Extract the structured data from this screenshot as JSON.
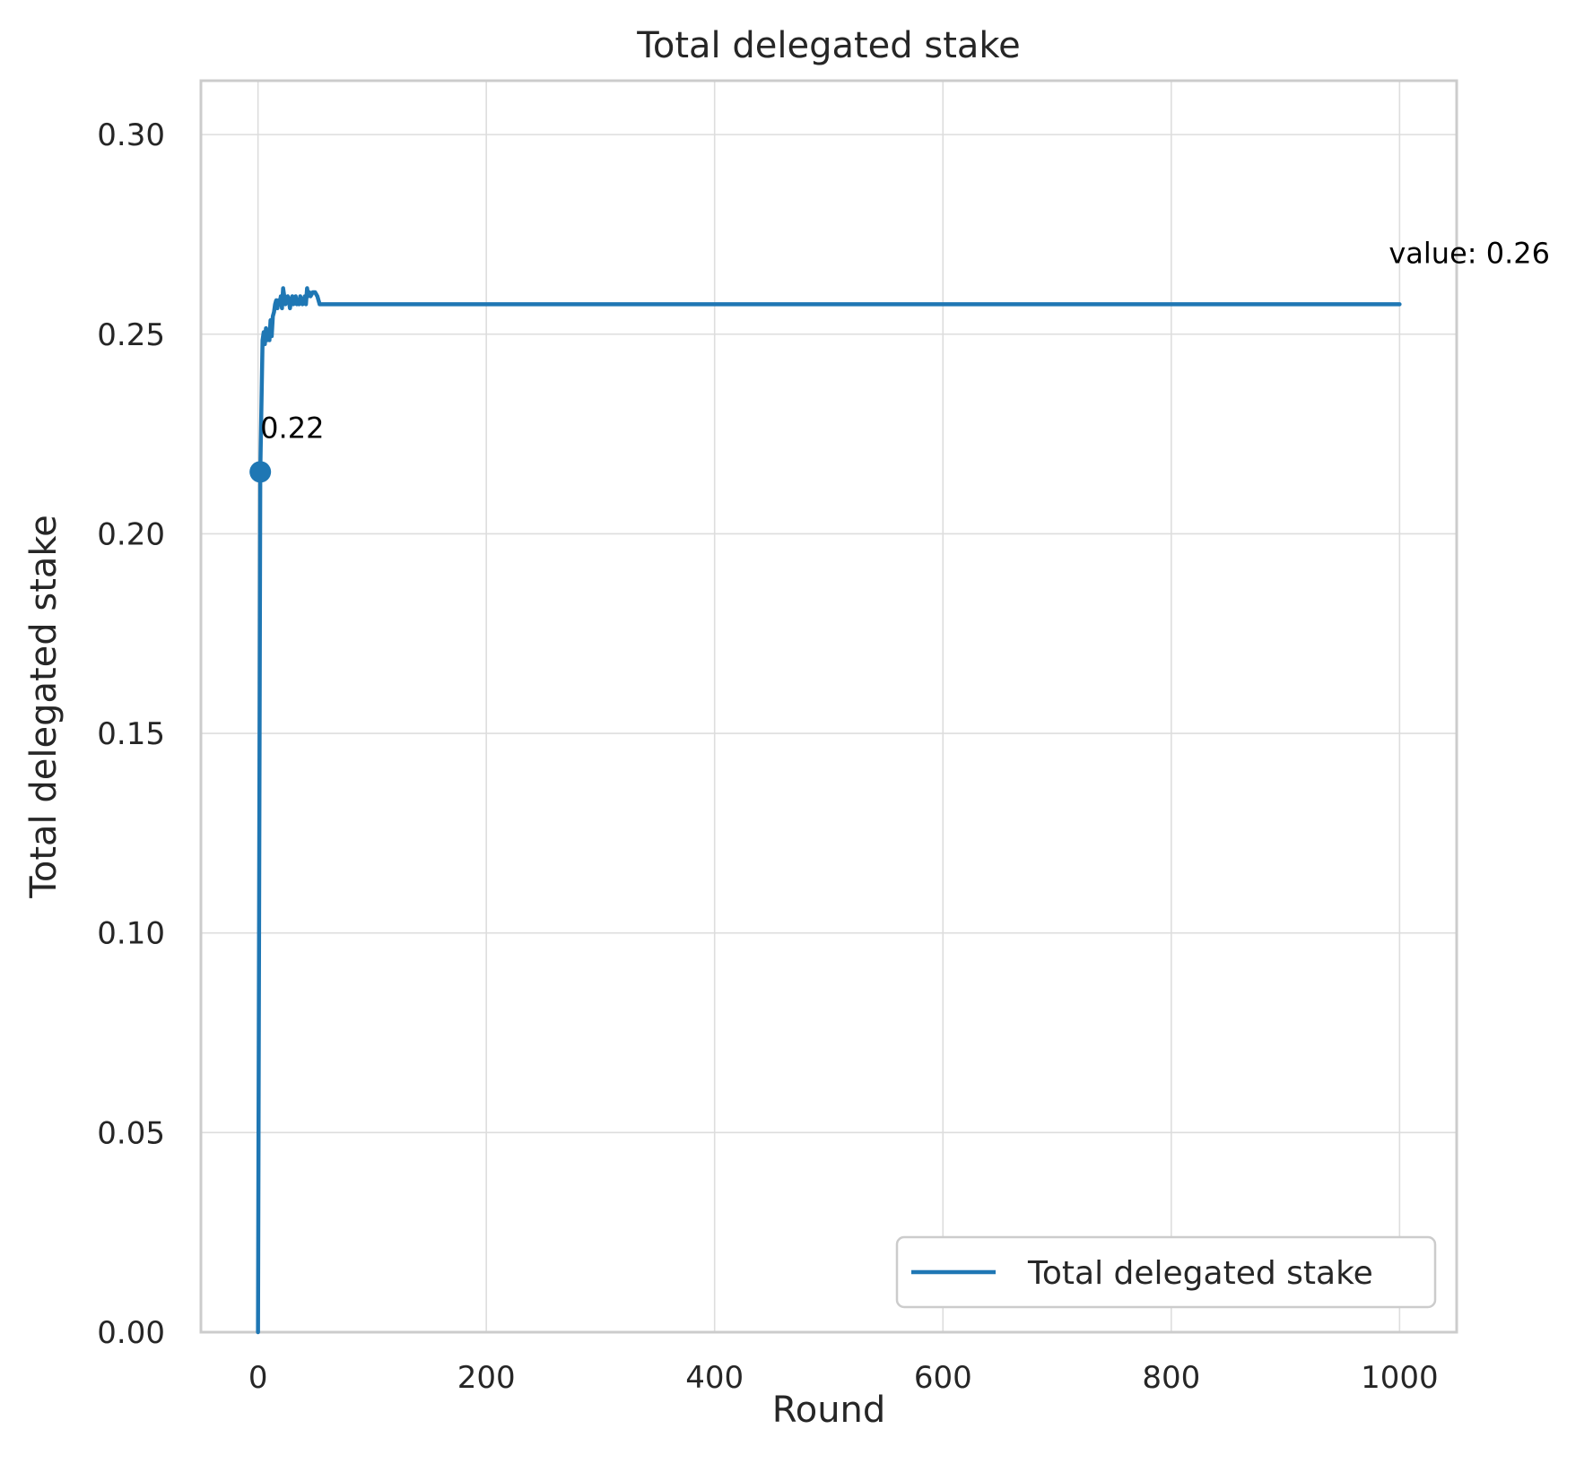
{
  "chart_data": {
    "type": "line",
    "title": "Total delegated stake",
    "xlabel": "Round",
    "ylabel": "Total delegated stake",
    "xlim": [
      -50,
      1050
    ],
    "ylim": [
      0,
      0.3135
    ],
    "xticks": [
      0,
      200,
      400,
      600,
      800,
      1000
    ],
    "xtick_labels": [
      "0",
      "200",
      "400",
      "600",
      "800",
      "1000"
    ],
    "yticks": [
      0,
      0.05,
      0.1,
      0.15,
      0.2,
      0.25,
      0.3
    ],
    "ytick_labels": [
      "0.00",
      "0.05",
      "0.10",
      "0.15",
      "0.20",
      "0.25",
      "0.30"
    ],
    "grid": true,
    "legend_position": "lower-right",
    "series": [
      {
        "name": "Total delegated stake",
        "color": "#1f77b4",
        "x": [
          0,
          2,
          4,
          5,
          6,
          7,
          8,
          9,
          10,
          11,
          12,
          13,
          14,
          15,
          16,
          17,
          18,
          19,
          20,
          21,
          22,
          23,
          24,
          25,
          26,
          27,
          28,
          29,
          30,
          31,
          32,
          33,
          34,
          35,
          36,
          37,
          38,
          39,
          40,
          41,
          42,
          43,
          44,
          45,
          46,
          48,
          50,
          52,
          54,
          56,
          1000
        ],
        "y": [
          0.0,
          0.2155,
          0.2485,
          0.2505,
          0.2475,
          0.2515,
          0.2485,
          0.2505,
          0.2485,
          0.2535,
          0.2495,
          0.2545,
          0.2555,
          0.2575,
          0.2585,
          0.2565,
          0.2585,
          0.2575,
          0.2595,
          0.2565,
          0.2615,
          0.2595,
          0.2575,
          0.2585,
          0.2595,
          0.2585,
          0.2565,
          0.2585,
          0.2595,
          0.2575,
          0.2585,
          0.2595,
          0.2575,
          0.2585,
          0.2575,
          0.2595,
          0.2585,
          0.2575,
          0.2585,
          0.2595,
          0.2575,
          0.2615,
          0.2595,
          0.2605,
          0.2595,
          0.2605,
          0.2605,
          0.2595,
          0.2575,
          0.2575,
          0.2575
        ]
      }
    ],
    "marker": {
      "x": 2,
      "y": 0.2155,
      "label": "0.22"
    },
    "end_annotation": {
      "x": 1000,
      "y": 0.2575,
      "label": "value: 0.26"
    }
  }
}
